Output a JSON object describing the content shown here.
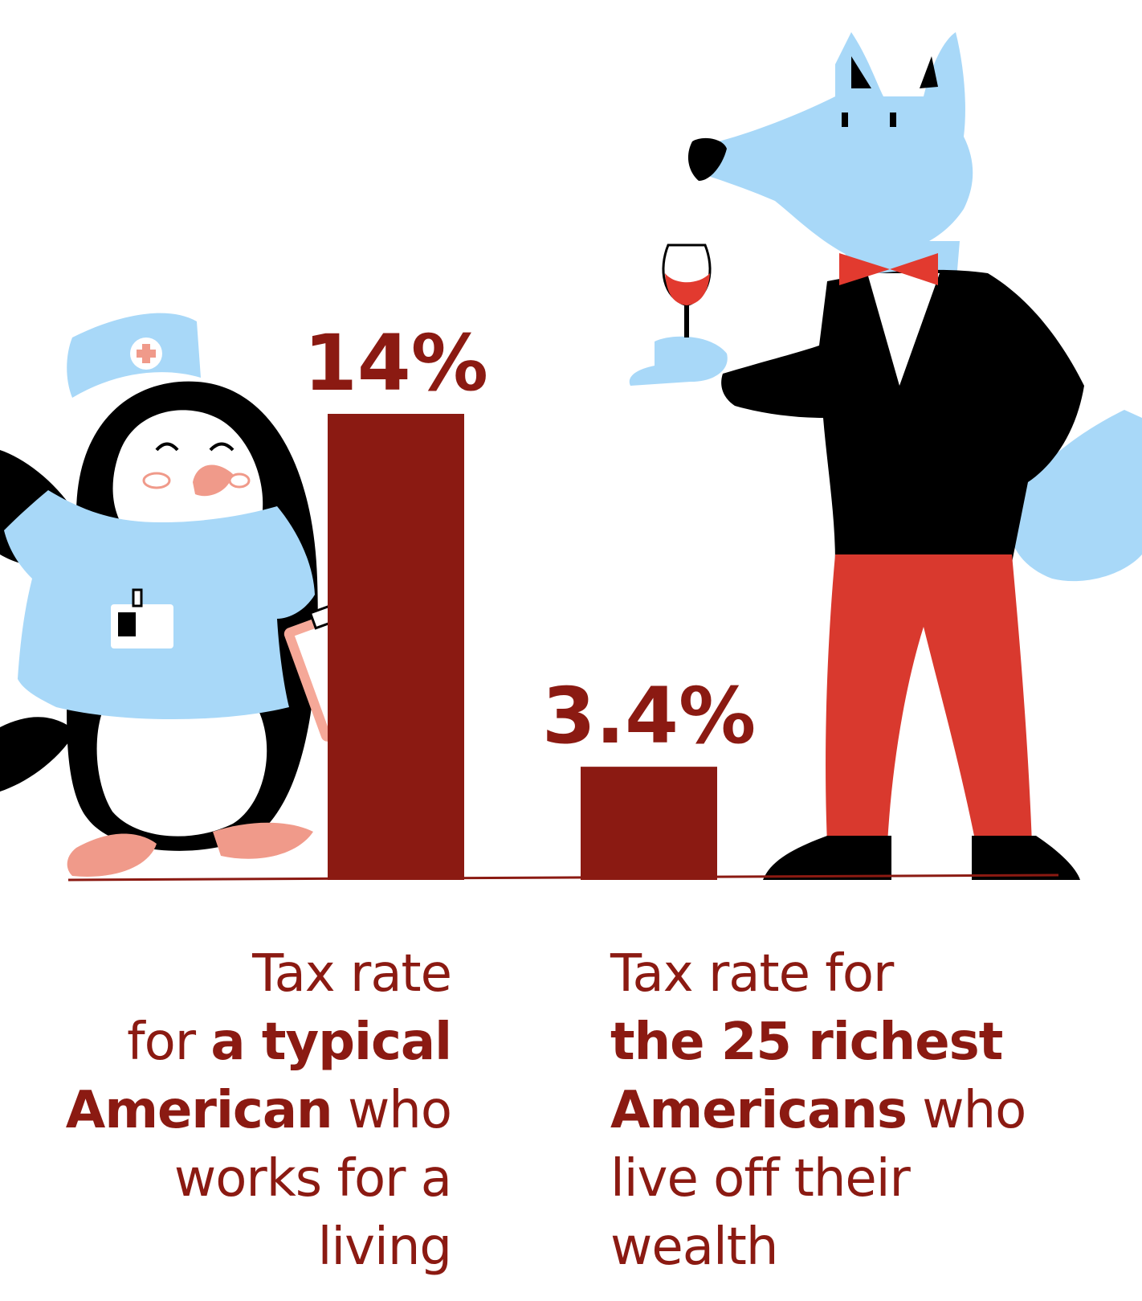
{
  "chart_data": {
    "type": "bar",
    "categories": [
      "Tax rate for a typical American who works for a living",
      "Tax rate for the 25 richest Americans who live off their wealth"
    ],
    "values": [
      14,
      3.4
    ],
    "value_labels": [
      "14%",
      "3.4%"
    ],
    "unit": "%",
    "ylim": [
      0,
      14
    ],
    "grid": false,
    "legend": "none",
    "colors": {
      "bar": "#8b1a12",
      "axis": "#8b1a12"
    }
  },
  "labels": {
    "left": {
      "l1": "Tax rate",
      "l2a": "for ",
      "l2b": "a typical",
      "l3a": "American",
      "l3b": " who",
      "l4": "works for a",
      "l5": "living"
    },
    "right": {
      "l1": "Tax rate for",
      "l2": "the 25 richest",
      "l3a": "Americans",
      "l3b": " who",
      "l4": "live off their",
      "l5": "wealth"
    }
  },
  "illustrations": {
    "left": "penguin-nurse-illustration",
    "right": "wolf-in-tuxedo-illustration"
  }
}
